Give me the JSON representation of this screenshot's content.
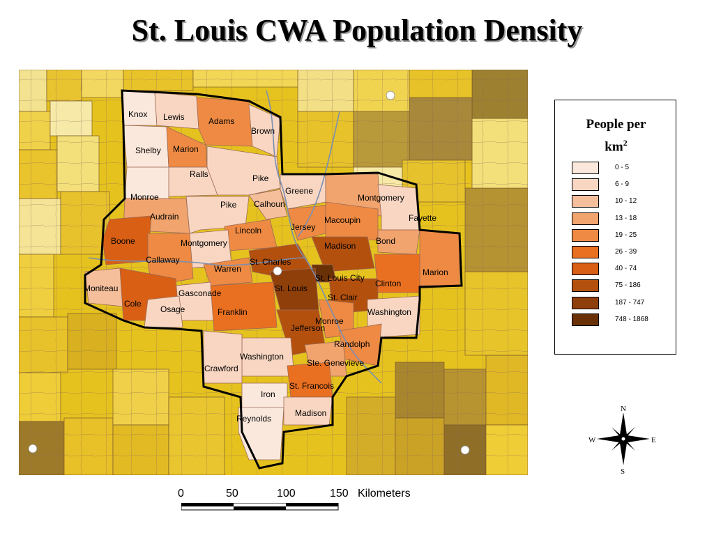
{
  "title": "St. Louis CWA Population Density",
  "legend": {
    "title_line1": "People per",
    "title_line2": "km",
    "title_sup": "2",
    "classes": [
      {
        "label": "0 - 5",
        "color": "#fbe8dc"
      },
      {
        "label": "6 - 9",
        "color": "#f8d6c2"
      },
      {
        "label": "10 - 12",
        "color": "#f5bf9c"
      },
      {
        "label": "13 - 18",
        "color": "#f1a46e"
      },
      {
        "label": "19 - 25",
        "color": "#ee8a43"
      },
      {
        "label": "26 - 39",
        "color": "#ea7021"
      },
      {
        "label": "40 - 74",
        "color": "#d85f14"
      },
      {
        "label": "75 - 186",
        "color": "#b3500e"
      },
      {
        "label": "187 - 747",
        "color": "#8f3f0a"
      },
      {
        "label": "748 - 1868",
        "color": "#6b3106"
      }
    ]
  },
  "compass": {
    "n": "N",
    "s": "S",
    "e": "E",
    "w": "W"
  },
  "scale": {
    "ticks": [
      "0",
      "50",
      "100",
      "150"
    ],
    "unit": "Kilometers"
  },
  "counties": [
    {
      "name": "Knox",
      "class": 0
    },
    {
      "name": "Lewis",
      "class": 1
    },
    {
      "name": "Adams",
      "class": 4
    },
    {
      "name": "Brown",
      "class": 1
    },
    {
      "name": "Shelby",
      "class": 0
    },
    {
      "name": "Marion",
      "class": 4
    },
    {
      "name": "Ralls",
      "class": 1
    },
    {
      "name": "Pike",
      "class": 1
    },
    {
      "name": "Monroe",
      "class": 0
    },
    {
      "name": "Pike",
      "class": 1
    },
    {
      "name": "Calhoun",
      "class": 2
    },
    {
      "name": "Greene",
      "class": 1
    },
    {
      "name": "Montgomery",
      "class": 3
    },
    {
      "name": "Fayette",
      "class": 1
    },
    {
      "name": "Audrain",
      "class": 3
    },
    {
      "name": "Lincoln",
      "class": 4
    },
    {
      "name": "Jersey",
      "class": 4
    },
    {
      "name": "Macoupin",
      "class": 4
    },
    {
      "name": "Bond",
      "class": 3
    },
    {
      "name": "Boone",
      "class": 6
    },
    {
      "name": "Montgomery",
      "class": 1
    },
    {
      "name": "Madison",
      "class": 7
    },
    {
      "name": "Callaway",
      "class": 4
    },
    {
      "name": "St. Charles",
      "class": 7
    },
    {
      "name": "Marion",
      "class": 4
    },
    {
      "name": "Warren",
      "class": 4
    },
    {
      "name": "St. Louis City",
      "class": 9
    },
    {
      "name": "Clinton",
      "class": 5
    },
    {
      "name": "Moniteau",
      "class": 2
    },
    {
      "name": "Gasconade",
      "class": 1
    },
    {
      "name": "St. Louis",
      "class": 8
    },
    {
      "name": "St. Clair",
      "class": 7
    },
    {
      "name": "Cole",
      "class": 6
    },
    {
      "name": "Osage",
      "class": 1
    },
    {
      "name": "Franklin",
      "class": 5
    },
    {
      "name": "Washington",
      "class": 1
    },
    {
      "name": "Jefferson",
      "class": 7
    },
    {
      "name": "Monroe",
      "class": 4
    },
    {
      "name": "Randolph",
      "class": 4
    },
    {
      "name": "Washington",
      "class": 1
    },
    {
      "name": "Crawford",
      "class": 1
    },
    {
      "name": "Ste. Genevieve",
      "class": 3
    },
    {
      "name": "St. Francois",
      "class": 5
    },
    {
      "name": "Iron",
      "class": 0
    },
    {
      "name": "Reynolds",
      "class": 0
    },
    {
      "name": "Madison",
      "class": 1
    }
  ]
}
